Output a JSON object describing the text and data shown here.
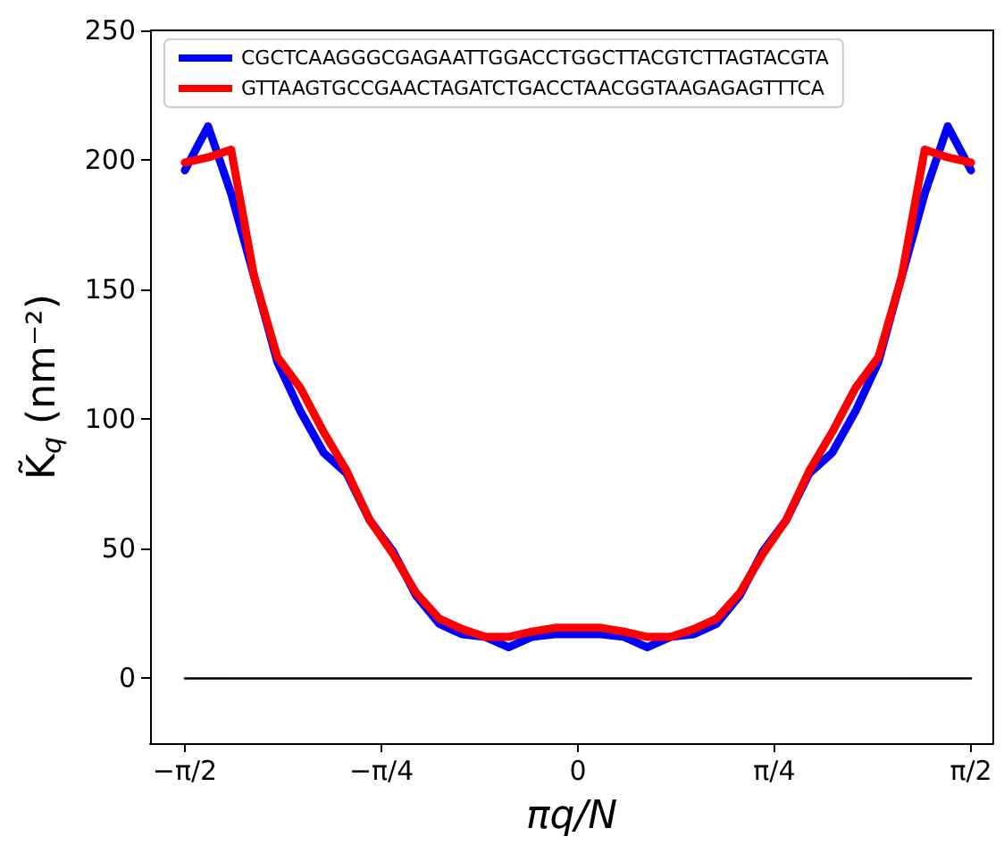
{
  "chart_data": {
    "type": "line",
    "xlabel": "πq/N",
    "ylabel": "K̃$_{q}$ (nm⁻²)",
    "x": [
      -1.571,
      -1.478,
      -1.386,
      -1.294,
      -1.201,
      -1.109,
      -1.016,
      -0.924,
      -0.832,
      -0.739,
      -0.647,
      -0.554,
      -0.462,
      -0.37,
      -0.277,
      -0.185,
      -0.092,
      0,
      0.092,
      0.185,
      0.277,
      0.37,
      0.462,
      0.554,
      0.647,
      0.739,
      0.832,
      0.924,
      1.016,
      1.109,
      1.201,
      1.294,
      1.386,
      1.478,
      1.571
    ],
    "series": [
      {
        "name": "CGCTCAAGGGCGAGAATTGGACCTGGCTTACGTCTTAGTACGTA",
        "color": "#0000ff",
        "values": [
          196,
          213,
          187,
          155,
          122,
          103,
          87,
          79,
          61,
          49,
          32,
          21,
          17,
          16,
          12,
          16,
          17,
          17,
          17,
          16,
          12,
          16,
          17,
          21,
          32,
          49,
          61,
          79,
          87,
          103,
          122,
          155,
          187,
          213,
          196
        ]
      },
      {
        "name": "GTTAAGTGCCGAACTAGATCTGACCTAACGGTAAGAGAGTTTCA",
        "color": "#ff0000",
        "values": [
          199,
          201,
          204,
          155,
          124,
          112,
          95,
          80,
          61,
          48,
          33,
          23,
          19,
          16,
          16,
          18,
          19.5,
          19.5,
          19.5,
          18,
          16,
          16,
          19,
          23,
          33,
          48,
          61,
          80,
          95,
          112,
          124,
          155,
          204,
          201,
          199
        ]
      },
      {
        "x": [
          -1.571,
          1.571
        ],
        "values": [
          0,
          0
        ],
        "color": "#000000"
      }
    ],
    "xlim": [
      -1.71,
      1.66
    ],
    "xticks": [
      {
        "value": -1.571,
        "label": "−π/2"
      },
      {
        "value": -0.785,
        "label": "−π/4"
      },
      {
        "value": 0,
        "label": "0"
      },
      {
        "value": 0.785,
        "label": "π/4"
      },
      {
        "value": 1.571,
        "label": "π/2"
      }
    ],
    "ylim": [
      -25,
      250
    ],
    "yticks": [
      0,
      50,
      100,
      150,
      200,
      250
    ],
    "grid": false,
    "legend": "top left",
    "marker": "none",
    "line_style": "solid"
  }
}
